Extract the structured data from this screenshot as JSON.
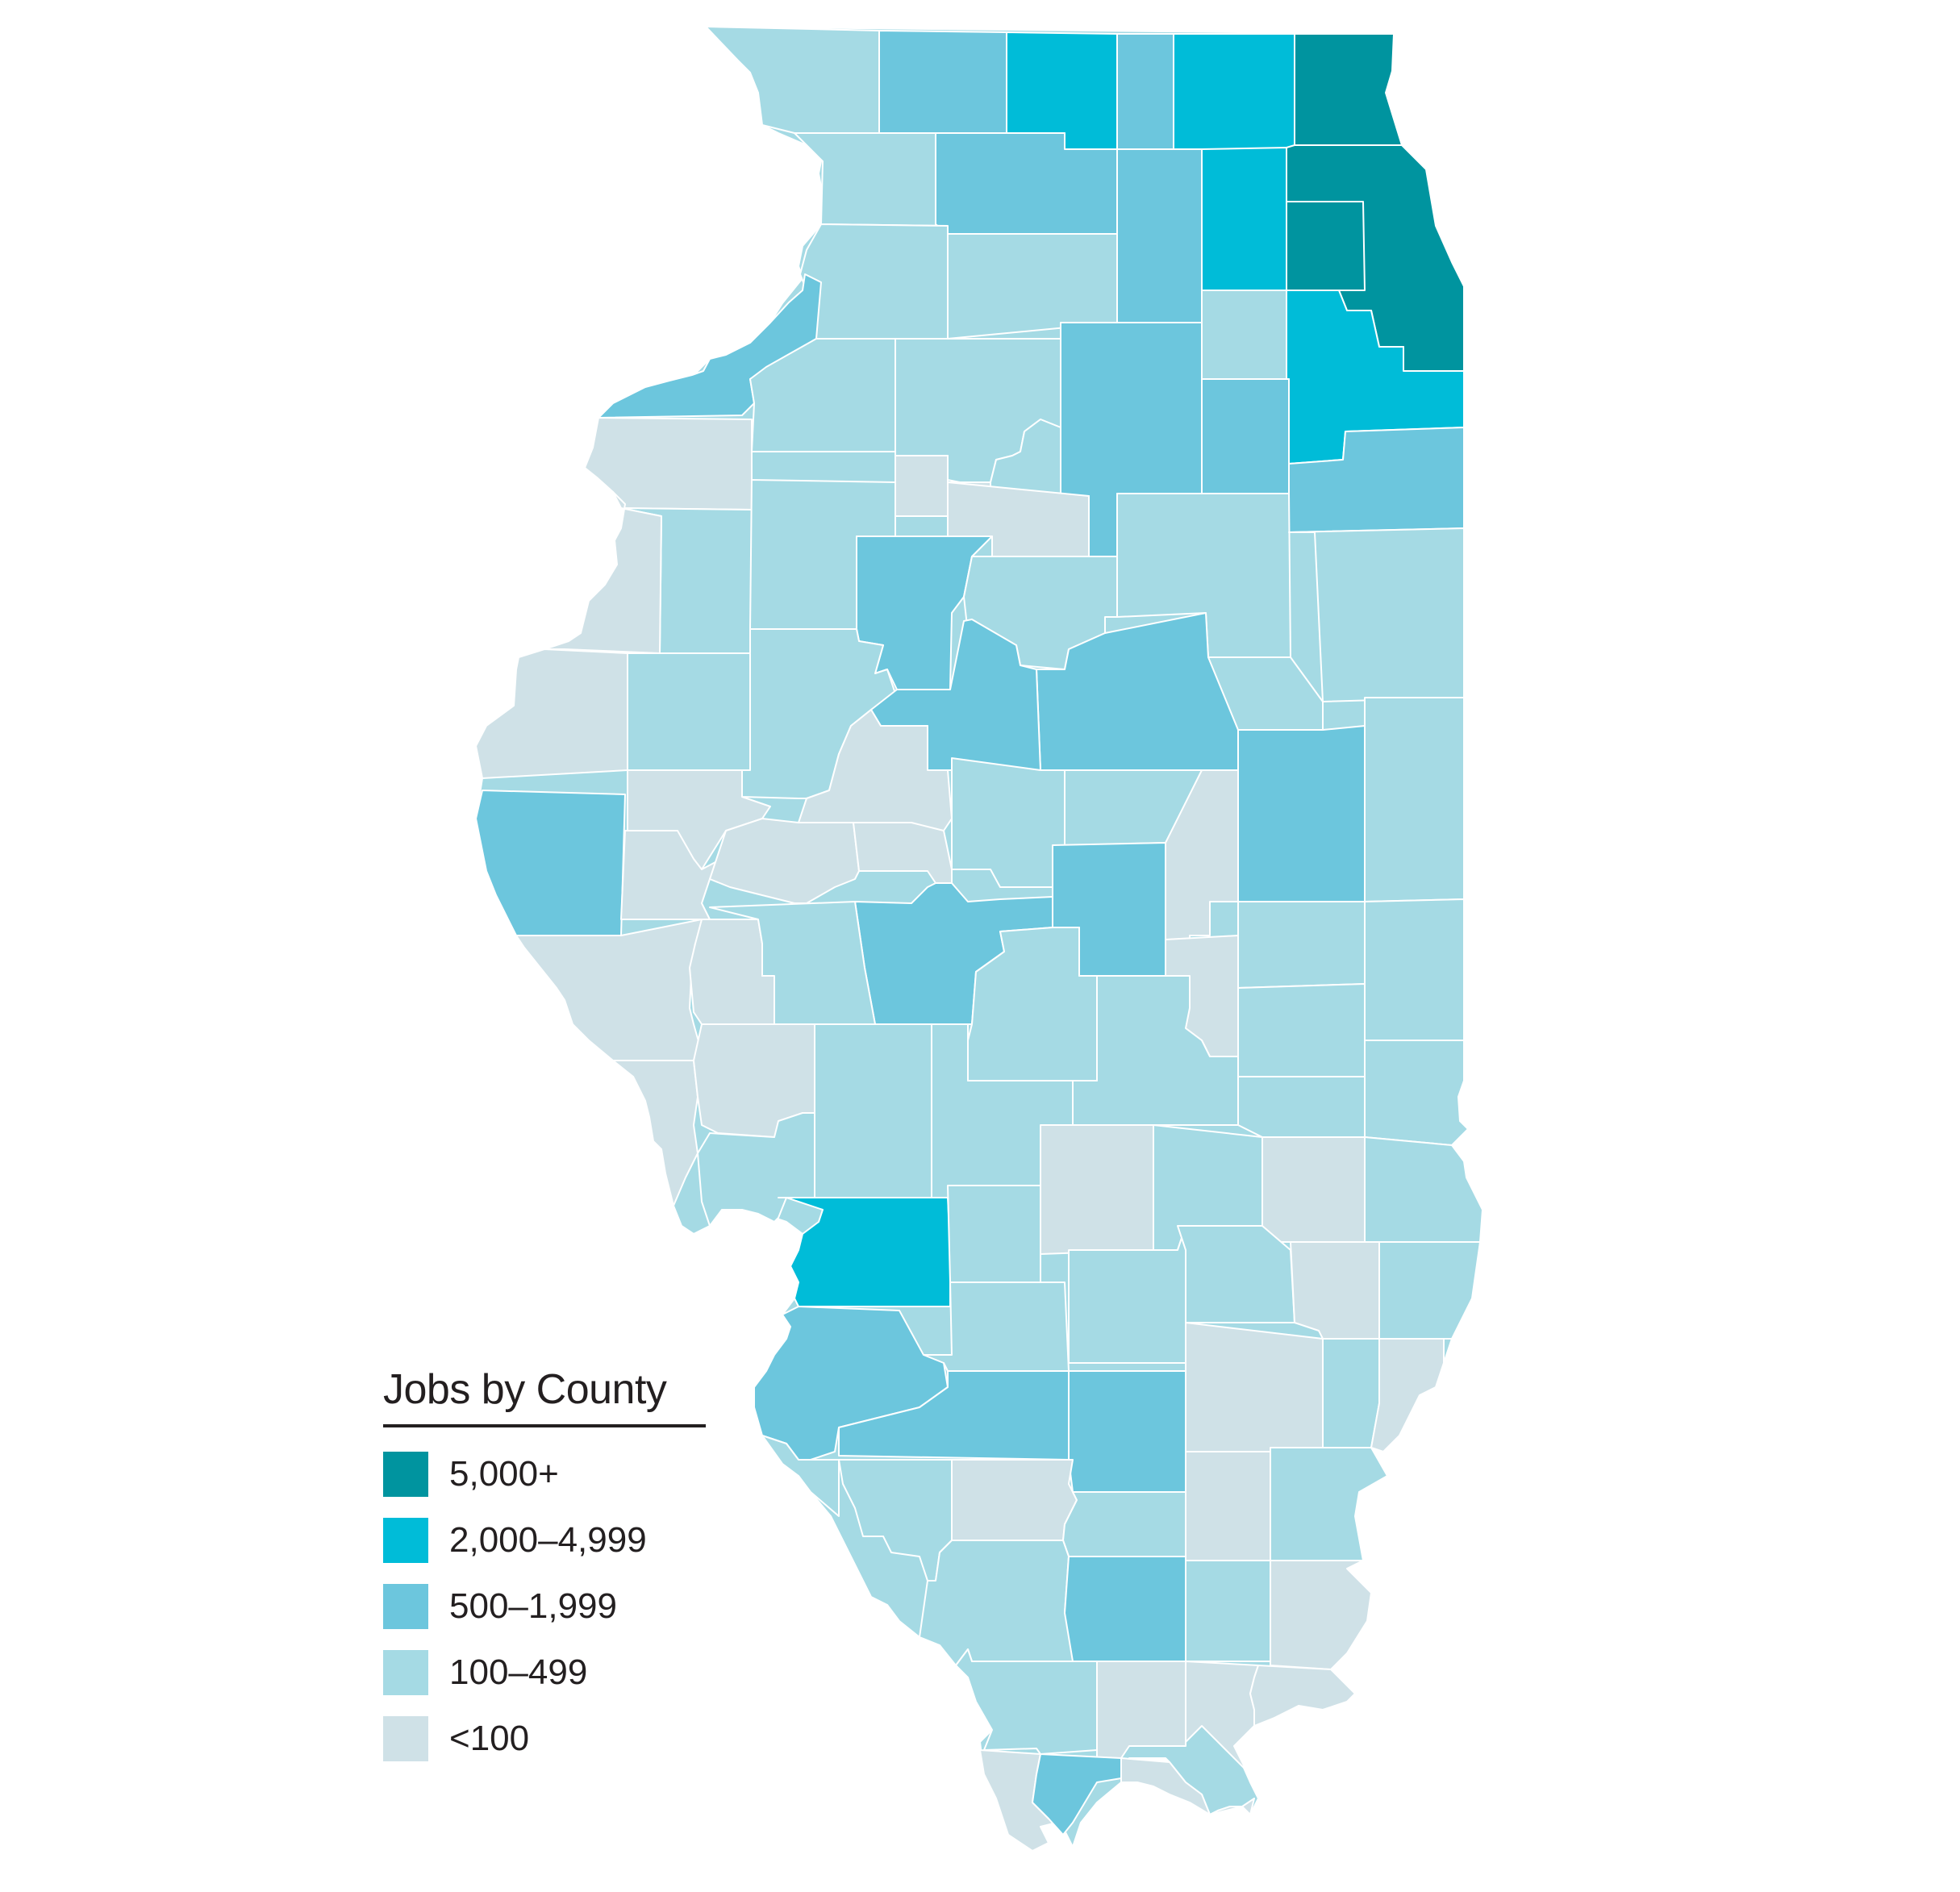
{
  "legend": {
    "title": "Jobs by County",
    "items": [
      {
        "label": "5,000+",
        "color": "#00949f"
      },
      {
        "label": "2,000–4,999",
        "color": "#00bcd8"
      },
      {
        "label": "500–1,999",
        "color": "#6cc6dd"
      },
      {
        "label": "100–499",
        "color": "#a5dae4"
      },
      {
        "label": "<100",
        "color": "#cfe1e7"
      }
    ]
  },
  "colors": {
    "tier5000": "#00949f",
    "tier2000": "#00bcd8",
    "tier500": "#6cc6dd",
    "tier100": "#a5dae4",
    "tierlt100": "#cfe1e7"
  }
}
